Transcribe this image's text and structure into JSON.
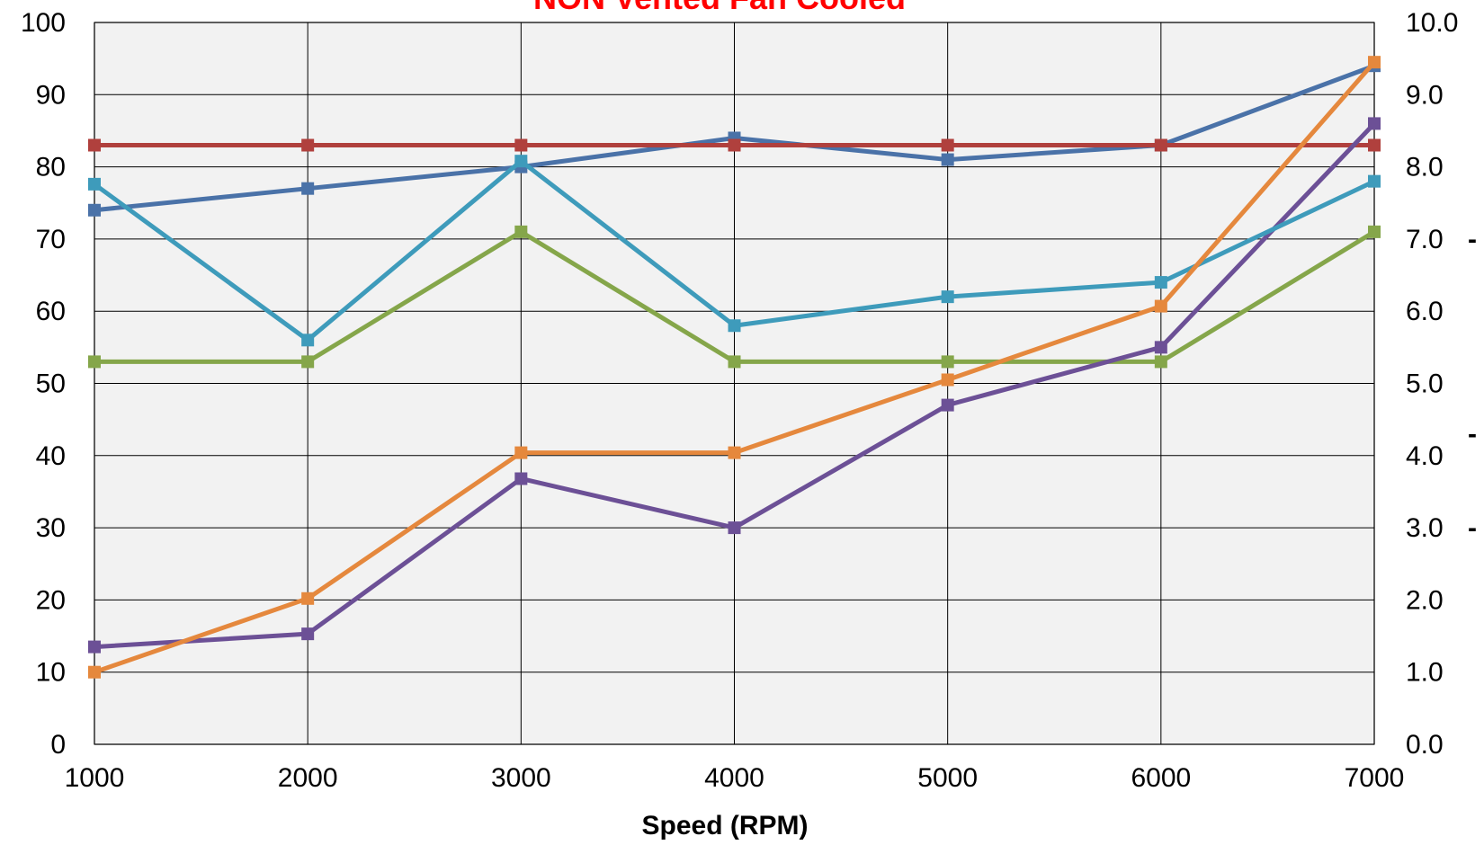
{
  "chart_data": {
    "type": "line",
    "title": "NON Vented Fan Cooled",
    "title_color": "#ff0000",
    "xlabel": "Speed (RPM)",
    "ylabel": "",
    "y2label": "",
    "x": [
      1000,
      2000,
      3000,
      4000,
      5000,
      6000,
      7000
    ],
    "xlim": [
      1000,
      7000
    ],
    "ylim": [
      0,
      100
    ],
    "y2lim": [
      0.0,
      10.0
    ],
    "x_ticks": [
      "1000",
      "2000",
      "3000",
      "4000",
      "5000",
      "6000",
      "7000"
    ],
    "y_ticks": [
      "0",
      "10",
      "20",
      "30",
      "40",
      "50",
      "60",
      "70",
      "80",
      "90",
      "100"
    ],
    "y2_ticks": [
      "0.0",
      "1.0",
      "2.0",
      "3.0",
      "4.0",
      "5.0",
      "6.0",
      "7.0",
      "8.0",
      "9.0",
      "10.0"
    ],
    "grid": true,
    "plot_background": "#f2f2f2",
    "series": [
      {
        "color": "#4a72a8",
        "values": [
          74,
          77,
          80,
          84,
          81,
          83,
          94
        ]
      },
      {
        "color": "#b0403d",
        "values": [
          83,
          83,
          83,
          83,
          83,
          83,
          83
        ]
      },
      {
        "color": "#85a64a",
        "values": [
          53,
          53,
          71,
          53,
          53,
          53,
          71
        ]
      },
      {
        "color": "#6c5096",
        "values": [
          13.5,
          15.3,
          36.8,
          30,
          47,
          55,
          86
        ]
      },
      {
        "color": "#3e9bbb",
        "values": [
          77.6,
          56,
          80.8,
          58,
          62,
          64,
          78
        ]
      },
      {
        "color": "#e5883d",
        "values": [
          10,
          20.2,
          40.4,
          40.4,
          50.5,
          60.7,
          94.5
        ]
      }
    ],
    "right_edge_marks": [
      {
        "y": 70,
        "text": "-"
      },
      {
        "y": 43,
        "text": "-"
      },
      {
        "y": 30,
        "text": "-"
      }
    ]
  }
}
